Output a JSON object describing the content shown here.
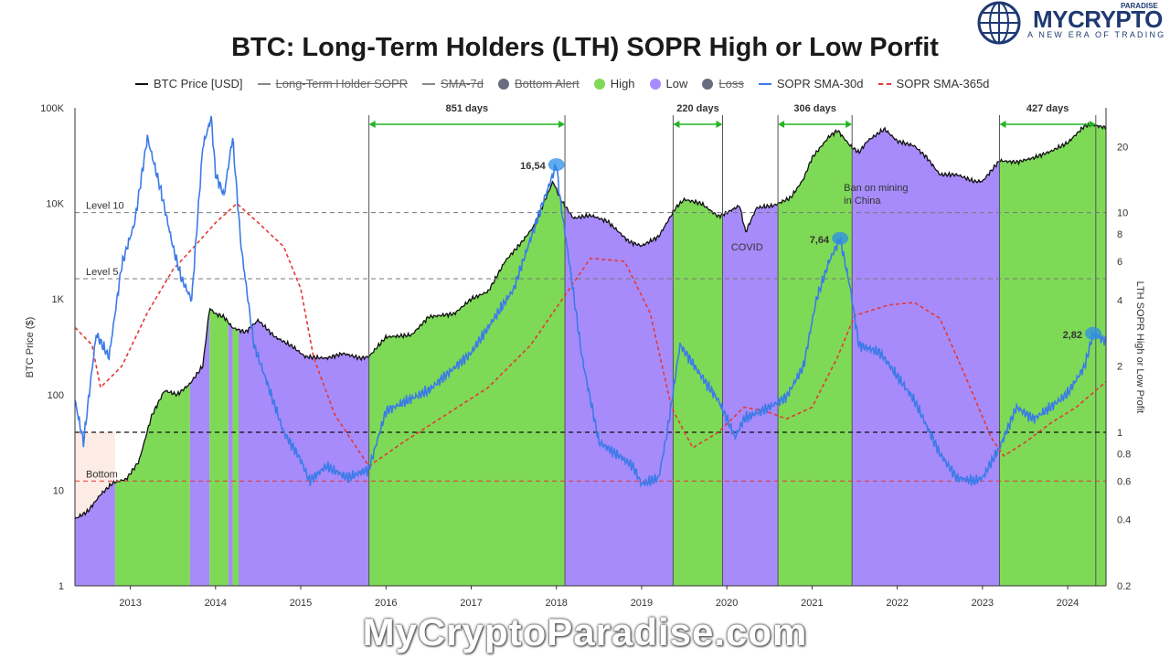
{
  "brand": {
    "name": "MYCRYPTO",
    "superscript": "PARADISE",
    "tagline": "A NEW ERA OF TRADING",
    "watermark": "MyCryptoParadise.com",
    "color": "#1f3a73"
  },
  "chart_data": {
    "type": "area",
    "title": "BTC: Long-Term Holders (LTH) SOPR High or Low Porfit",
    "ylabel_left": "BTC Price ($)",
    "ylabel_right": "LTH SOPR High or Low Profit",
    "left_axis": {
      "scale": "log",
      "range": [
        1,
        100000
      ],
      "ticks": [
        "1",
        "10",
        "100",
        "1K",
        "10K",
        "100K"
      ]
    },
    "right_axis": {
      "scale": "log",
      "range": [
        0.2,
        30
      ],
      "ticks": [
        "0.2",
        "0.4",
        "0.6",
        "0.8",
        "1",
        "2",
        "4",
        "6",
        "8",
        "10",
        "20"
      ]
    },
    "x_axis": {
      "range": [
        2012.35,
        2024.45
      ],
      "ticks": [
        "2013",
        "2014",
        "2015",
        "2016",
        "2017",
        "2018",
        "2019",
        "2020",
        "2021",
        "2022",
        "2023",
        "2024"
      ]
    },
    "legend": [
      {
        "label": "BTC Price [USD]",
        "kind": "line",
        "color": "#111111",
        "struck": false
      },
      {
        "label": "Long-Term Holder SOPR",
        "kind": "line",
        "color": "#888888",
        "struck": true
      },
      {
        "label": "SMA-7d",
        "kind": "line",
        "color": "#888888",
        "struck": true
      },
      {
        "label": "Bottom Alert",
        "kind": "dot",
        "color": "#6b6b80",
        "struck": true
      },
      {
        "label": "High",
        "kind": "dot",
        "color": "#7ed957",
        "struck": false
      },
      {
        "label": "Low",
        "kind": "dot",
        "color": "#a78bfa",
        "struck": false
      },
      {
        "label": "Loss",
        "kind": "dot",
        "color": "#6b6b80",
        "struck": true
      },
      {
        "label": "SOPR SMA-30d",
        "kind": "line",
        "color": "#3b7be8",
        "struck": false
      },
      {
        "label": "SOPR SMA-365d",
        "kind": "dash",
        "color": "#e53935",
        "struck": false
      }
    ],
    "colors": {
      "high": "#7ed957",
      "low": "#a78bfa",
      "loss": "#fde6e0",
      "price": "#111111",
      "sma30": "#3b7be8",
      "sma365": "#e53935",
      "callout": "#2e8ee8",
      "days": "#22b522"
    },
    "regimes": [
      {
        "state": "low",
        "start": 2012.35,
        "end": 2012.82
      },
      {
        "state": "high",
        "start": 2012.82,
        "end": 2013.7
      },
      {
        "state": "low",
        "start": 2013.7,
        "end": 2013.93
      },
      {
        "state": "high",
        "start": 2013.93,
        "end": 2014.15
      },
      {
        "state": "low",
        "start": 2014.15,
        "end": 2014.2
      },
      {
        "state": "high",
        "start": 2014.2,
        "end": 2014.27
      },
      {
        "state": "low",
        "start": 2014.27,
        "end": 2015.8
      },
      {
        "state": "high",
        "start": 2015.8,
        "end": 2018.1
      },
      {
        "state": "low",
        "start": 2018.1,
        "end": 2019.37
      },
      {
        "state": "high",
        "start": 2019.37,
        "end": 2019.95
      },
      {
        "state": "low",
        "start": 2019.95,
        "end": 2020.6
      },
      {
        "state": "high",
        "start": 2020.6,
        "end": 2021.47
      },
      {
        "state": "low",
        "start": 2021.47,
        "end": 2023.2
      },
      {
        "state": "high",
        "start": 2023.2,
        "end": 2024.45
      }
    ],
    "loss_zone": {
      "start": 2012.35,
      "end": 2012.82,
      "top_sopr": 1
    },
    "btc_price": {
      "x": [
        2012.35,
        2012.5,
        2012.65,
        2012.8,
        2012.95,
        2013.1,
        2013.25,
        2013.4,
        2013.55,
        2013.7,
        2013.85,
        2013.93,
        2014.0,
        2014.1,
        2014.2,
        2014.35,
        2014.5,
        2014.7,
        2014.9,
        2015.05,
        2015.3,
        2015.5,
        2015.7,
        2015.8,
        2016.0,
        2016.3,
        2016.5,
        2016.8,
        2017.0,
        2017.2,
        2017.4,
        2017.6,
        2017.75,
        2017.85,
        2017.96,
        2018.05,
        2018.2,
        2018.4,
        2018.6,
        2018.85,
        2019.0,
        2019.2,
        2019.4,
        2019.5,
        2019.7,
        2019.9,
        2020.0,
        2020.15,
        2020.22,
        2020.35,
        2020.55,
        2020.75,
        2020.9,
        2021.0,
        2021.2,
        2021.3,
        2021.45,
        2021.55,
        2021.65,
        2021.85,
        2022.0,
        2022.2,
        2022.35,
        2022.5,
        2022.7,
        2022.9,
        2023.0,
        2023.2,
        2023.4,
        2023.6,
        2023.8,
        2024.0,
        2024.2,
        2024.3,
        2024.45
      ],
      "y": [
        5,
        6,
        9,
        12,
        13,
        20,
        60,
        110,
        100,
        130,
        200,
        800,
        700,
        650,
        500,
        450,
        600,
        400,
        320,
        250,
        240,
        270,
        240,
        250,
        400,
        420,
        650,
        700,
        1000,
        1200,
        2500,
        4000,
        6000,
        10000,
        17000,
        11000,
        7000,
        7500,
        6500,
        4000,
        3600,
        4500,
        9000,
        11000,
        10000,
        7300,
        8000,
        9500,
        5000,
        9000,
        9500,
        11500,
        18000,
        30000,
        50000,
        58000,
        40000,
        34000,
        45000,
        60000,
        45000,
        40000,
        30000,
        20000,
        20000,
        17000,
        17000,
        28000,
        27000,
        30000,
        35000,
        43000,
        65000,
        66000,
        62000
      ]
    },
    "sopr_sma30": {
      "x": [
        2012.35,
        2012.45,
        2012.6,
        2012.75,
        2012.9,
        2013.05,
        2013.2,
        2013.35,
        2013.5,
        2013.6,
        2013.72,
        2013.85,
        2013.95,
        2014.0,
        2014.1,
        2014.2,
        2014.3,
        2014.45,
        2014.6,
        2014.8,
        2015.0,
        2015.1,
        2015.3,
        2015.55,
        2015.8,
        2016.0,
        2016.5,
        2017.0,
        2017.5,
        2017.8,
        2018.0,
        2018.05,
        2018.15,
        2018.3,
        2018.5,
        2018.7,
        2018.9,
        2019.0,
        2019.2,
        2019.3,
        2019.45,
        2019.55,
        2019.7,
        2019.9,
        2020.1,
        2020.2,
        2020.5,
        2020.7,
        2020.9,
        2021.05,
        2021.2,
        2021.33,
        2021.45,
        2021.55,
        2021.8,
        2022.0,
        2022.2,
        2022.5,
        2022.7,
        2022.9,
        2023.0,
        2023.2,
        2023.4,
        2023.6,
        2023.8,
        2024.0,
        2024.2,
        2024.3,
        2024.45
      ],
      "y": [
        1.4,
        0.9,
        2.8,
        2.2,
        5.8,
        9.0,
        22.0,
        13.0,
        7.0,
        5.0,
        4.0,
        20.0,
        27.0,
        15.0,
        12.0,
        22.0,
        7.0,
        2.5,
        1.7,
        1.0,
        0.75,
        0.6,
        0.7,
        0.62,
        0.68,
        1.25,
        1.55,
        2.3,
        4.5,
        10.0,
        16.54,
        11.0,
        6.0,
        2.2,
        0.9,
        0.8,
        0.7,
        0.58,
        0.62,
        1.0,
        2.5,
        2.2,
        1.8,
        1.4,
        0.95,
        1.15,
        1.3,
        1.45,
        2.0,
        4.0,
        6.0,
        7.64,
        4.5,
        2.5,
        2.3,
        1.8,
        1.4,
        0.8,
        0.62,
        0.6,
        0.62,
        0.85,
        1.3,
        1.15,
        1.3,
        1.5,
        2.0,
        2.82,
        2.6
      ]
    },
    "sopr_sma365": {
      "x": [
        2012.35,
        2012.55,
        2012.65,
        2012.9,
        2013.2,
        2013.5,
        2013.75,
        2014.0,
        2014.25,
        2014.5,
        2014.8,
        2015.0,
        2015.15,
        2015.4,
        2015.8,
        2016.2,
        2016.7,
        2017.2,
        2017.7,
        2018.1,
        2018.4,
        2018.8,
        2019.1,
        2019.35,
        2019.6,
        2019.9,
        2020.2,
        2020.45,
        2020.7,
        2021.0,
        2021.3,
        2021.5,
        2021.9,
        2022.2,
        2022.5,
        2022.8,
        2023.1,
        2023.25,
        2023.5,
        2023.8,
        2024.1,
        2024.45
      ],
      "y": [
        3.0,
        2.5,
        1.6,
        2.0,
        3.5,
        5.5,
        7.0,
        9.0,
        11.0,
        9.0,
        7.0,
        4.5,
        2.2,
        1.2,
        0.7,
        0.9,
        1.2,
        1.6,
        2.5,
        4.2,
        6.2,
        6.0,
        3.5,
        1.3,
        0.85,
        1.0,
        1.3,
        1.25,
        1.15,
        1.3,
        2.2,
        3.4,
        3.8,
        3.9,
        3.3,
        1.8,
        0.95,
        0.78,
        0.9,
        1.1,
        1.3,
        1.7
      ]
    },
    "callouts": [
      {
        "label": "16,54",
        "x": 2018.0,
        "sopr": 16.54
      },
      {
        "label": "7,64",
        "x": 2021.33,
        "sopr": 7.64
      },
      {
        "label": "2,82",
        "x": 2024.3,
        "sopr": 2.82
      }
    ],
    "spans": [
      {
        "label": "851 days",
        "start": 2015.8,
        "end": 2018.1
      },
      {
        "label": "220 days",
        "start": 2019.37,
        "end": 2019.95
      },
      {
        "label": "306 days",
        "start": 2020.6,
        "end": 2021.47
      },
      {
        "label": "427 days",
        "start": 2023.2,
        "end": 2024.33
      }
    ],
    "reference_lines": [
      {
        "label": "Level 10",
        "sopr": 10
      },
      {
        "label": "Level 5",
        "sopr": 5
      },
      {
        "label": "Bottom",
        "sopr": 0.6
      }
    ],
    "neutral_line": 1,
    "annotations": [
      {
        "text": "COVID",
        "x": 2020.05
      },
      {
        "text": "Ban on mining",
        "x": 2021.33
      },
      {
        "text": "in China",
        "x": 2021.33
      }
    ],
    "grid": false
  }
}
